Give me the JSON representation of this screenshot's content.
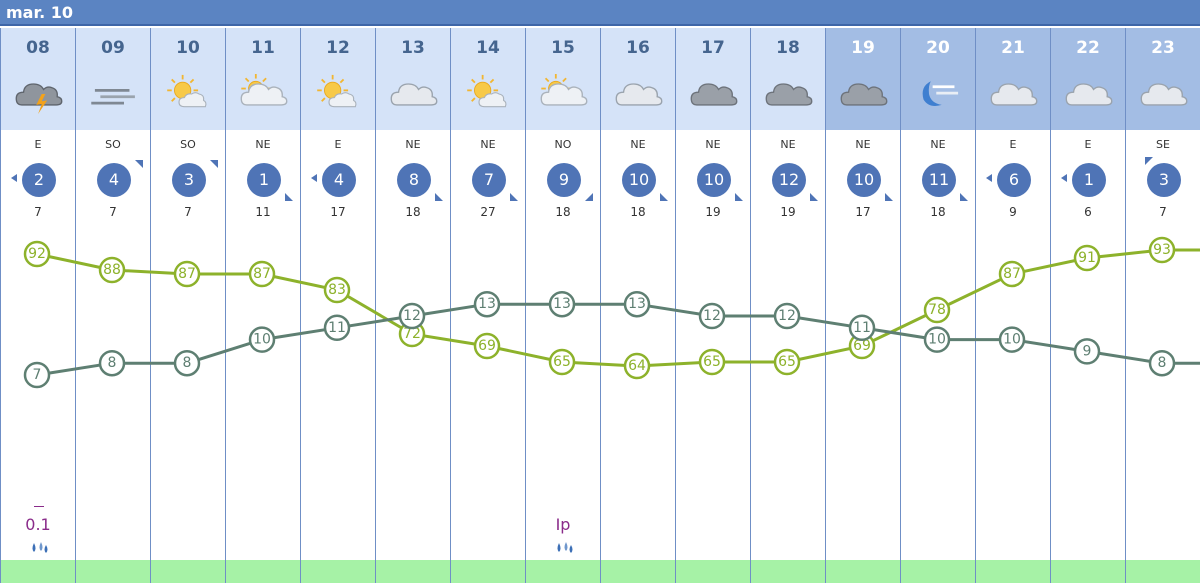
{
  "date_label": "mar. 10",
  "columns": [
    {
      "hour": "08",
      "icon": "thunder-rain-icon",
      "dir": "E",
      "wind": "2",
      "gust": "7",
      "night": false,
      "precip": "0.1",
      "dash": true,
      "drops": true
    },
    {
      "hour": "09",
      "icon": "fog-icon",
      "dir": "SO",
      "wind": "4",
      "gust": "7",
      "night": false,
      "precip": "",
      "dash": false,
      "drops": false
    },
    {
      "hour": "10",
      "icon": "sun-cloud-icon",
      "dir": "SO",
      "wind": "3",
      "gust": "7",
      "night": false,
      "precip": "",
      "dash": false,
      "drops": false
    },
    {
      "hour": "11",
      "icon": "sun-cloud-big-icon",
      "dir": "NE",
      "wind": "1",
      "gust": "11",
      "night": false,
      "precip": "",
      "dash": false,
      "drops": false
    },
    {
      "hour": "12",
      "icon": "sun-cloud-icon",
      "dir": "E",
      "wind": "4",
      "gust": "17",
      "night": false,
      "precip": "",
      "dash": false,
      "drops": false
    },
    {
      "hour": "13",
      "icon": "cloud-icon",
      "dir": "NE",
      "wind": "8",
      "gust": "18",
      "night": false,
      "precip": "",
      "dash": false,
      "drops": false
    },
    {
      "hour": "14",
      "icon": "sun-cloud-icon",
      "dir": "NE",
      "wind": "7",
      "gust": "27",
      "night": false,
      "precip": "",
      "dash": false,
      "drops": false
    },
    {
      "hour": "15",
      "icon": "sun-cloud-big-icon",
      "dir": "NO",
      "wind": "9",
      "gust": "18",
      "night": false,
      "precip": "Ip",
      "dash": false,
      "drops": true
    },
    {
      "hour": "16",
      "icon": "cloud-icon",
      "dir": "NE",
      "wind": "10",
      "gust": "18",
      "night": false,
      "precip": "",
      "dash": false,
      "drops": false
    },
    {
      "hour": "17",
      "icon": "dark-cloud-icon",
      "dir": "NE",
      "wind": "10",
      "gust": "19",
      "night": false,
      "precip": "",
      "dash": false,
      "drops": false
    },
    {
      "hour": "18",
      "icon": "dark-cloud-icon",
      "dir": "NE",
      "wind": "12",
      "gust": "19",
      "night": false,
      "precip": "",
      "dash": false,
      "drops": false
    },
    {
      "hour": "19",
      "icon": "dark-cloud-icon",
      "dir": "NE",
      "wind": "10",
      "gust": "17",
      "night": true,
      "precip": "",
      "dash": false,
      "drops": false
    },
    {
      "hour": "20",
      "icon": "moon-cloud-icon",
      "dir": "NE",
      "wind": "11",
      "gust": "18",
      "night": true,
      "precip": "",
      "dash": false,
      "drops": false
    },
    {
      "hour": "21",
      "icon": "cloud-icon",
      "dir": "E",
      "wind": "6",
      "gust": "9",
      "night": true,
      "precip": "",
      "dash": false,
      "drops": false
    },
    {
      "hour": "22",
      "icon": "cloud-icon",
      "dir": "E",
      "wind": "1",
      "gust": "6",
      "night": true,
      "precip": "",
      "dash": false,
      "drops": false
    },
    {
      "hour": "23",
      "icon": "cloud-icon",
      "dir": "SE",
      "wind": "3",
      "gust": "7",
      "night": true,
      "precip": "",
      "dash": false,
      "drops": false
    }
  ],
  "chart_data": {
    "type": "line",
    "x": [
      "08",
      "09",
      "10",
      "11",
      "12",
      "13",
      "14",
      "15",
      "16",
      "17",
      "18",
      "19",
      "20",
      "21",
      "22",
      "23"
    ],
    "series": [
      {
        "values": [
          92,
          88,
          87,
          87,
          83,
          72,
          69,
          65,
          64,
          65,
          65,
          69,
          78,
          87,
          91,
          93
        ],
        "color": "#8db22b"
      },
      {
        "values": [
          7,
          8,
          8,
          10,
          11,
          12,
          13,
          13,
          13,
          12,
          12,
          11,
          10,
          10,
          9,
          8
        ],
        "color": "#5e7f72"
      }
    ]
  }
}
